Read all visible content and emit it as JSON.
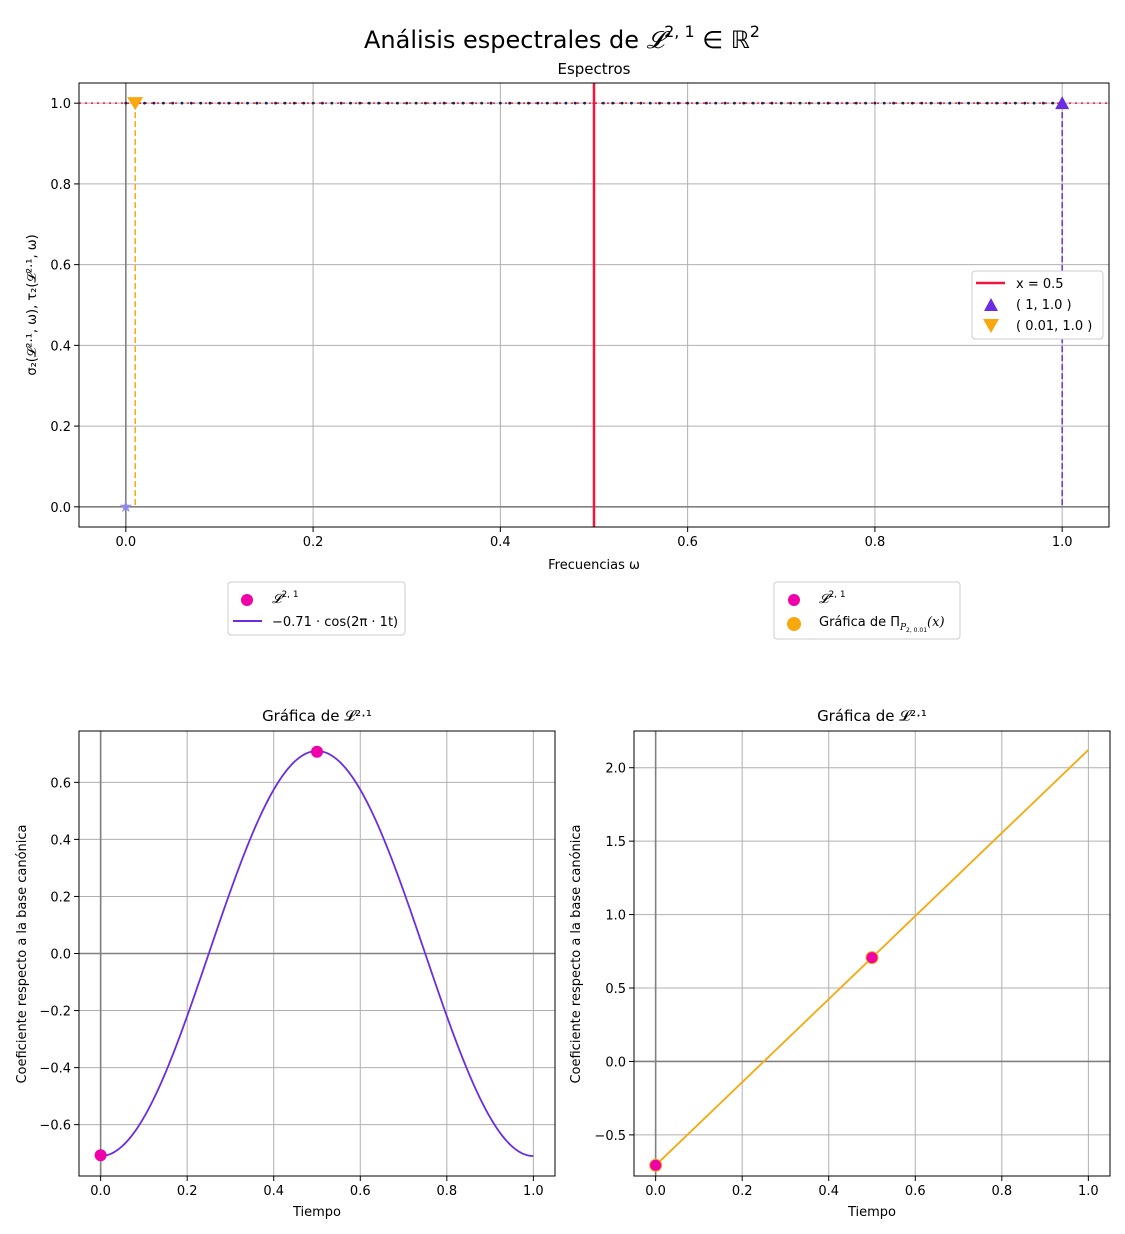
{
  "figure": {
    "suptitle_prefix": "Análisis espectrales de ",
    "suptitle_math": "𝓛",
    "suptitle_sup": "2, 1",
    "suptitle_in": " ∈ ℝ",
    "suptitle_sup2": "2"
  },
  "colors": {
    "red": "#f0163c",
    "purple": "#6a2ee0",
    "orange": "#f7a80c",
    "magenta": "#f000a8",
    "grid": "#b0b0b0",
    "axisline": "#808080"
  },
  "chart_data": [
    {
      "type": "scatter",
      "title": "Espectros",
      "xlabel": "Frecuencias ω",
      "ylabel": "σ₂(𝓛²·¹, ω), τ₂(𝓛²·¹, ω)",
      "xlim": [
        -0.05,
        1.05
      ],
      "ylim": [
        -0.05,
        1.05
      ],
      "xticks": [
        "0.0",
        "0.2",
        "0.4",
        "0.6",
        "0.8",
        "1.0"
      ],
      "yticks": [
        "0.0",
        "0.2",
        "0.4",
        "0.6",
        "0.8",
        "1.0"
      ],
      "grid": true,
      "legend_position": "center-right",
      "vline": {
        "name": "x = 0.5",
        "x": 0.5
      },
      "markers": [
        {
          "name": "( 1, 1.0 )",
          "x": 1,
          "y": 1.0,
          "shape": "triangle-up"
        },
        {
          "name": "( 0.01, 1.0 )",
          "x": 0.01,
          "y": 1.0,
          "shape": "triangle-down"
        }
      ],
      "star_point": {
        "x": 0.0,
        "y": 0.0
      },
      "dotted_series": {
        "y": 1.0,
        "x_from": 0.0,
        "x_to": 1.0,
        "step": 0.01
      }
    },
    {
      "type": "line",
      "title": "Gráfica de 𝓛²·¹",
      "xlabel": "Tiempo",
      "ylabel": "Coeficiente respecto a la base canónica",
      "xlim": [
        -0.05,
        1.05
      ],
      "ylim": [
        -0.78,
        0.78
      ],
      "xticks": [
        "0.0",
        "0.2",
        "0.4",
        "0.6",
        "0.8",
        "1.0"
      ],
      "yticks": [
        "−0.6",
        "−0.4",
        "−0.2",
        "0.0",
        "0.2",
        "0.4",
        "0.6"
      ],
      "grid": true,
      "legend_position": "above",
      "series": [
        {
          "name": "−0.71 · cos(2π · 1t)",
          "amplitude": -0.71,
          "frequency": 1
        }
      ],
      "points": [
        {
          "x": 0.0,
          "y": -0.7071
        },
        {
          "x": 0.5,
          "y": 0.7071
        }
      ]
    },
    {
      "type": "line",
      "title": "Gráfica de 𝓛²·¹",
      "xlabel": "Tiempo",
      "ylabel": "Coeficiente respecto a la base canónica",
      "xlim": [
        -0.05,
        1.05
      ],
      "ylim": [
        -0.78,
        2.25
      ],
      "xticks": [
        "0.0",
        "0.2",
        "0.4",
        "0.6",
        "0.8",
        "1.0"
      ],
      "yticks": [
        "−0.5",
        "0.0",
        "0.5",
        "1.0",
        "1.5",
        "2.0"
      ],
      "grid": true,
      "legend_position": "above",
      "series": [
        {
          "name": "Gráfica de Π_{P₂,₀.₀₁}(x)",
          "x": [
            0.0,
            1.0
          ],
          "y": [
            -0.7071,
            2.1213
          ]
        }
      ],
      "points": [
        {
          "x": 0.0,
          "y": -0.7071
        },
        {
          "x": 0.5,
          "y": 0.7071
        }
      ]
    }
  ],
  "legends": {
    "top_left": {
      "item1": "𝓛",
      "item1_sup": "2, 1",
      "item2": "−0.71 · cos(2π · 1t)"
    },
    "top_right": {
      "item1": "𝓛",
      "item1_sup": "2, 1",
      "item2_prefix": "Gráfica de Π",
      "item2_sub": "P",
      "item2_subsub": "2, 0.01",
      "item2_suffix": "(x)"
    }
  }
}
